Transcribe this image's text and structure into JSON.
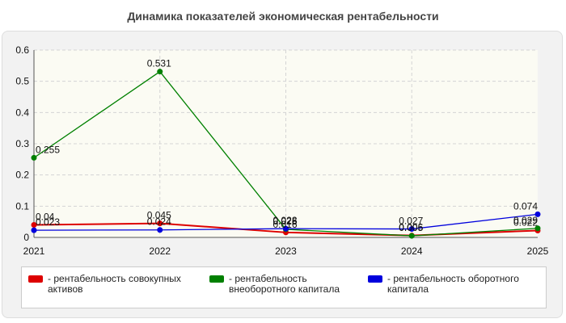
{
  "chart_data": {
    "type": "line",
    "title": "Динамика показателей экономическая рентабельности",
    "x": [
      "2021",
      "2022",
      "2023",
      "2024",
      "2025"
    ],
    "ylim": [
      0,
      0.6
    ],
    "yticks": [
      "0",
      "0.1",
      "0.2",
      "0.3",
      "0.4",
      "0.5",
      "0.6"
    ],
    "grid": true,
    "legend_position": "bottom",
    "series": [
      {
        "name": "рентабельность совокупных активов",
        "color": "#dd0000",
        "values": [
          0.04,
          0.045,
          0.016,
          0.006,
          0.022
        ],
        "labels": [
          "0.04",
          "0.045",
          "0.016",
          "0.006",
          "0.022"
        ]
      },
      {
        "name": "рентабельность внеоборотного капитала",
        "color": "#008000",
        "values": [
          0.255,
          0.531,
          0.026,
          0.005,
          0.029
        ],
        "labels": [
          "0.255",
          "0.531",
          "0.026",
          "0.005",
          "0.029"
        ]
      },
      {
        "name": "рентабельность оборотного капитала",
        "color": "#0000dd",
        "values": [
          0.023,
          0.024,
          0.028,
          0.027,
          0.074
        ],
        "labels": [
          "0.023",
          "0.024",
          "0.028",
          "0.027",
          "0.074"
        ]
      }
    ]
  }
}
